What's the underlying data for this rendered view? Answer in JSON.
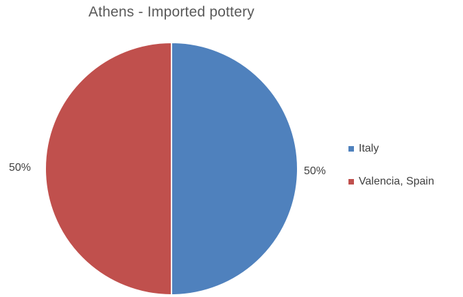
{
  "chart_data": {
    "type": "pie",
    "title": "Athens - Imported pottery",
    "categories": [
      "Italy",
      "Valencia, Spain"
    ],
    "values": [
      50,
      50
    ],
    "data_labels": [
      "50%",
      "50%"
    ],
    "colors": [
      "#4F81BD",
      "#C0504D"
    ],
    "legend_position": "right",
    "start_angle_deg": 0,
    "direction": "clockwise"
  }
}
